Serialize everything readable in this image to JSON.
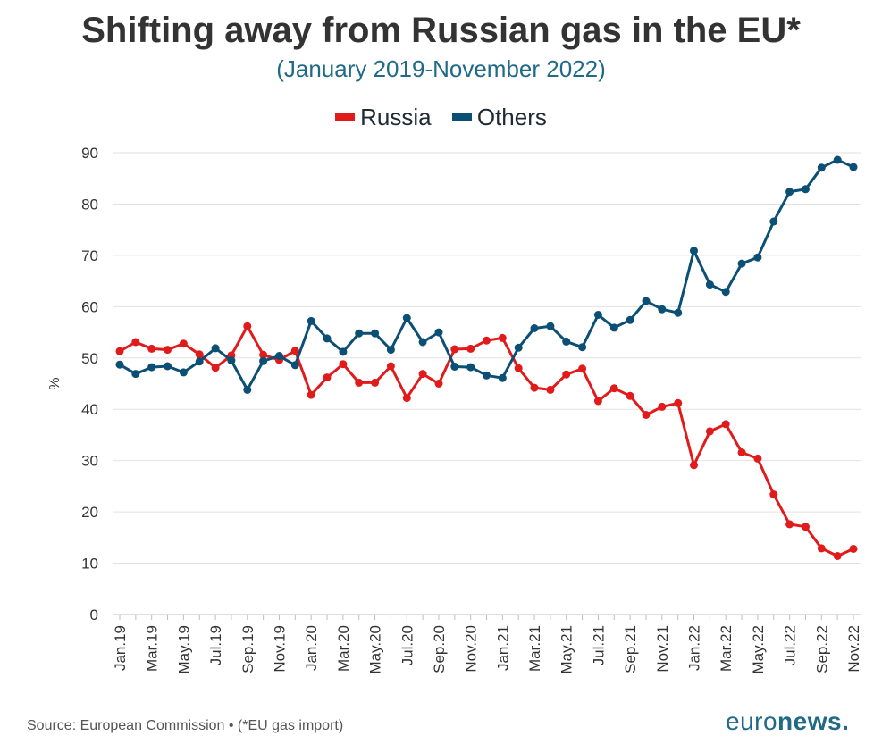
{
  "header": {
    "title": "Shifting away from Russian gas in the EU*",
    "subtitle": "(January 2019-November 2022)"
  },
  "legend": {
    "items": [
      {
        "label": "Russia",
        "color": "#e11b1b"
      },
      {
        "label": "Others",
        "color": "#0b4f75"
      }
    ]
  },
  "footer": {
    "source": "Source: European Commission • (*EU gas import)",
    "brand_a": "euro",
    "brand_b": "news."
  },
  "chart_data": {
    "type": "line",
    "ylabel": "%",
    "ylim": [
      0,
      90
    ],
    "yticks": [
      0,
      10,
      20,
      30,
      40,
      50,
      60,
      70,
      80,
      90
    ],
    "grid": "horizontal",
    "legend_position": "top",
    "x": [
      "Jan.19",
      "Feb.19",
      "Mar.19",
      "Apr.19",
      "May.19",
      "Jun.19",
      "Jul.19",
      "Aug.19",
      "Sep.19",
      "Oct.19",
      "Nov.19",
      "Dec.19",
      "Jan.20",
      "Feb.20",
      "Mar.20",
      "Apr.20",
      "May.20",
      "Jun.20",
      "Jul.20",
      "Aug.20",
      "Sep.20",
      "Oct.20",
      "Nov.20",
      "Dec.20",
      "Jan.21",
      "Feb.21",
      "Mar.21",
      "Apr.21",
      "May.21",
      "Jun.21",
      "Jul.21",
      "Aug.21",
      "Sep.21",
      "Oct.21",
      "Nov.21",
      "Dec.21",
      "Jan.22",
      "Feb.22",
      "Mar.22",
      "Apr.22",
      "May.22",
      "Jun.22",
      "Jul.22",
      "Aug.22",
      "Sep.22",
      "Oct.22",
      "Nov.22"
    ],
    "xtick_labels": [
      "Jan.19",
      "Mar.19",
      "May.19",
      "Jul.19",
      "Sep.19",
      "Nov.19",
      "Jan.20",
      "Mar.20",
      "May.20",
      "Jul.20",
      "Sep.20",
      "Nov.20",
      "Jan.21",
      "Mar.21",
      "May.21",
      "Jul.21",
      "Sep.21",
      "Nov.21",
      "Jan.22",
      "Mar.22",
      "May.22",
      "Jul.22",
      "Sep.22",
      "Nov.22"
    ],
    "series": [
      {
        "name": "Russia",
        "color": "#e11b1b",
        "values": [
          51.3,
          53.1,
          51.8,
          51.6,
          52.8,
          50.7,
          48.1,
          50.5,
          56.2,
          50.6,
          49.6,
          51.4,
          42.8,
          46.2,
          48.8,
          45.2,
          45.2,
          48.4,
          42.2,
          46.9,
          45.0,
          51.7,
          51.8,
          53.4,
          53.9,
          48.0,
          44.2,
          43.8,
          46.8,
          47.9,
          41.6,
          44.1,
          42.6,
          38.9,
          40.5,
          41.2,
          29.1,
          35.7,
          37.1,
          31.6,
          30.4,
          23.4,
          17.6,
          17.1,
          12.9,
          11.4,
          12.8
        ]
      },
      {
        "name": "Others",
        "color": "#0b4f75",
        "values": [
          48.7,
          46.9,
          48.2,
          48.4,
          47.2,
          49.3,
          51.9,
          49.5,
          43.8,
          49.4,
          50.4,
          48.6,
          57.2,
          53.8,
          51.2,
          54.8,
          54.8,
          51.6,
          57.8,
          53.1,
          55.0,
          48.3,
          48.2,
          46.6,
          46.1,
          52.0,
          55.8,
          56.2,
          53.2,
          52.1,
          58.4,
          55.9,
          57.4,
          61.1,
          59.5,
          58.8,
          70.9,
          64.3,
          62.9,
          68.4,
          69.6,
          76.6,
          82.4,
          82.9,
          87.1,
          88.6,
          87.2
        ]
      }
    ]
  }
}
